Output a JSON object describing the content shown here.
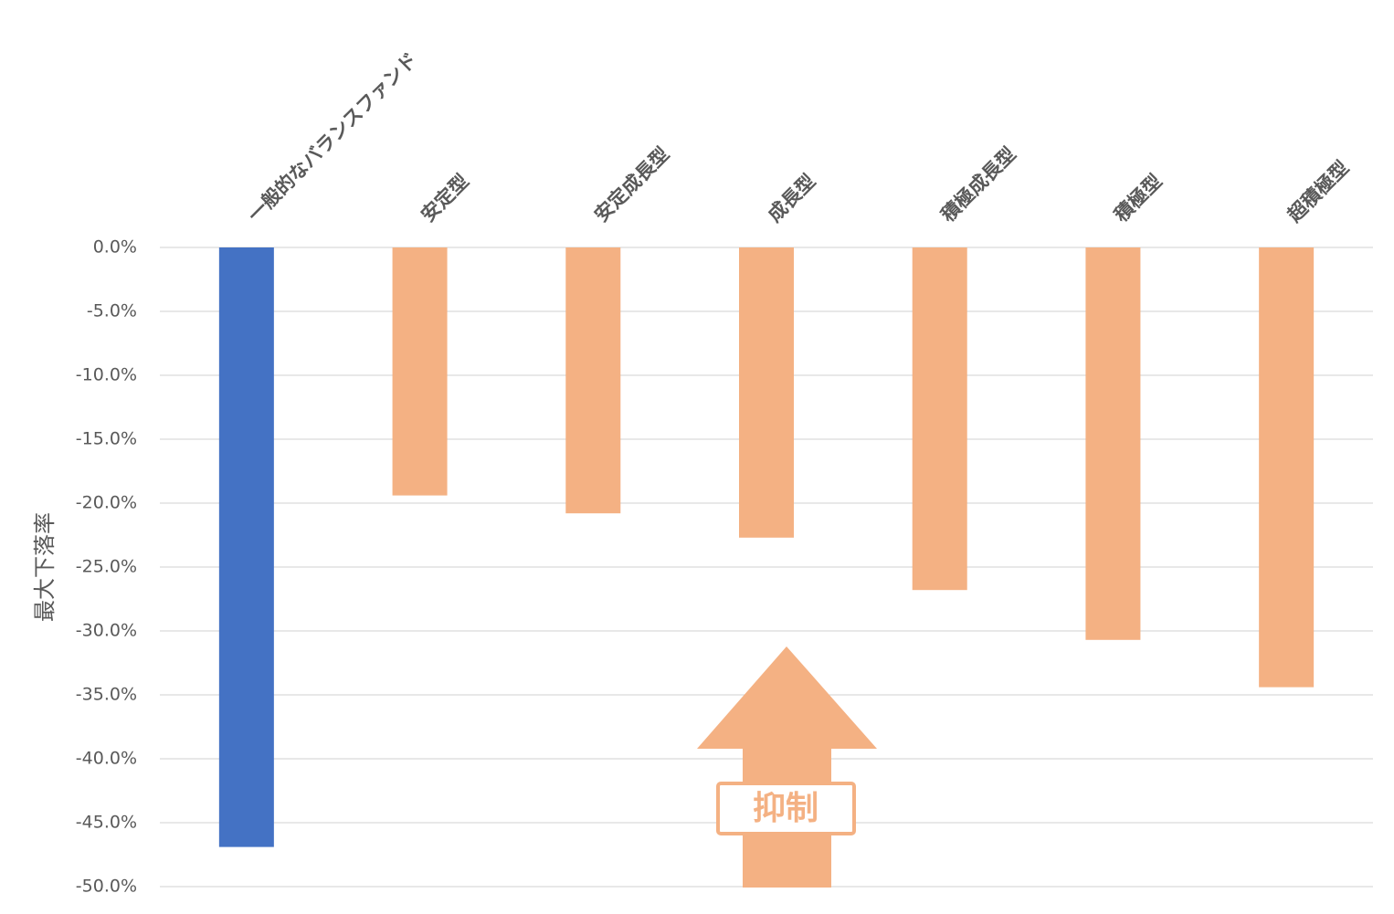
{
  "chart_data": {
    "type": "bar",
    "y_label": "最大下落率",
    "categories": [
      "一般的なバランスファンド",
      "安定型",
      "安定成長型",
      "成長型",
      "積極成長型",
      "積極型",
      "超積極型"
    ],
    "values": [
      -46.9,
      -19.4,
      -20.8,
      -22.7,
      -26.8,
      -30.7,
      -34.4
    ],
    "colors": [
      "#4472c4",
      "#f4b183",
      "#f4b183",
      "#f4b183",
      "#f4b183",
      "#f4b183",
      "#f4b183"
    ],
    "ylim": [
      -50,
      0
    ],
    "yticks": [
      {
        "value": 0,
        "label": "0.0%"
      },
      {
        "value": -5,
        "label": "-5.0%"
      },
      {
        "value": -10,
        "label": "-10.0%"
      },
      {
        "value": -15,
        "label": "-15.0%"
      },
      {
        "value": -20,
        "label": "-20.0%"
      },
      {
        "value": -25,
        "label": "-25.0%"
      },
      {
        "value": -30,
        "label": "-30.0%"
      },
      {
        "value": -35,
        "label": "-35.0%"
      },
      {
        "value": -40,
        "label": "-40.0%"
      },
      {
        "value": -45,
        "label": "-45.0%"
      },
      {
        "value": -50,
        "label": "-50.0%"
      }
    ],
    "grid": true,
    "annotation": "抑制"
  }
}
